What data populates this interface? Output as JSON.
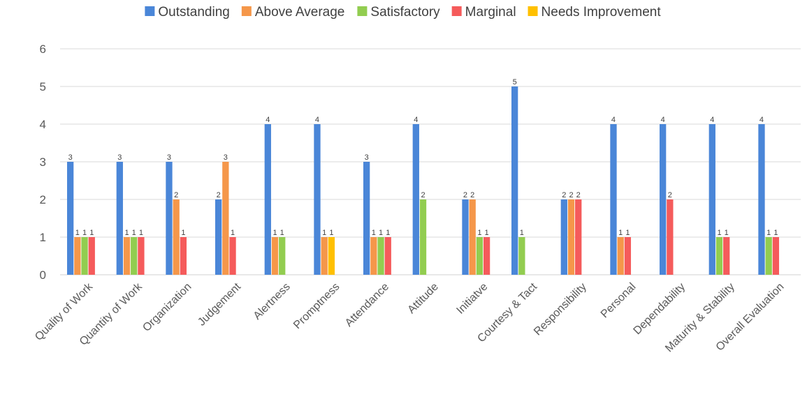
{
  "chart_data": {
    "type": "bar",
    "title": "",
    "xlabel": "",
    "ylabel": "",
    "ylim": [
      0,
      6
    ],
    "yticks": [
      0,
      1,
      2,
      3,
      4,
      5,
      6
    ],
    "grid": true,
    "legend_position": "top",
    "categories": [
      "Quality of Work",
      "Quantity of Work",
      "Organization",
      "Judgement",
      "Alertness",
      "Promptness",
      "Attendance",
      "Attitude",
      "Initiatve",
      "Courtesy & Tact",
      "Responsibility",
      "Personal",
      "Dependability",
      "Maturity & Stability",
      "Overall Evaluation"
    ],
    "series": [
      {
        "name": "Outstanding",
        "color": "#4a86d8",
        "values": [
          3,
          3,
          3,
          2,
          4,
          4,
          3,
          4,
          2,
          5,
          2,
          4,
          4,
          4,
          4
        ]
      },
      {
        "name": "Above Average",
        "color": "#f5974a",
        "values": [
          1,
          1,
          2,
          3,
          1,
          1,
          1,
          null,
          2,
          null,
          2,
          1,
          null,
          null,
          null
        ]
      },
      {
        "name": "Satisfactory",
        "color": "#92cd50",
        "values": [
          1,
          1,
          null,
          null,
          1,
          null,
          1,
          2,
          1,
          1,
          null,
          null,
          null,
          1,
          1
        ]
      },
      {
        "name": "Marginal",
        "color": "#f55b5b",
        "values": [
          1,
          1,
          1,
          1,
          null,
          null,
          1,
          null,
          1,
          null,
          2,
          1,
          2,
          1,
          1
        ]
      },
      {
        "name": "Needs Improvement",
        "color": "#ffc000",
        "values": [
          null,
          null,
          null,
          null,
          null,
          1,
          null,
          null,
          null,
          null,
          null,
          null,
          null,
          null,
          null
        ]
      }
    ]
  }
}
